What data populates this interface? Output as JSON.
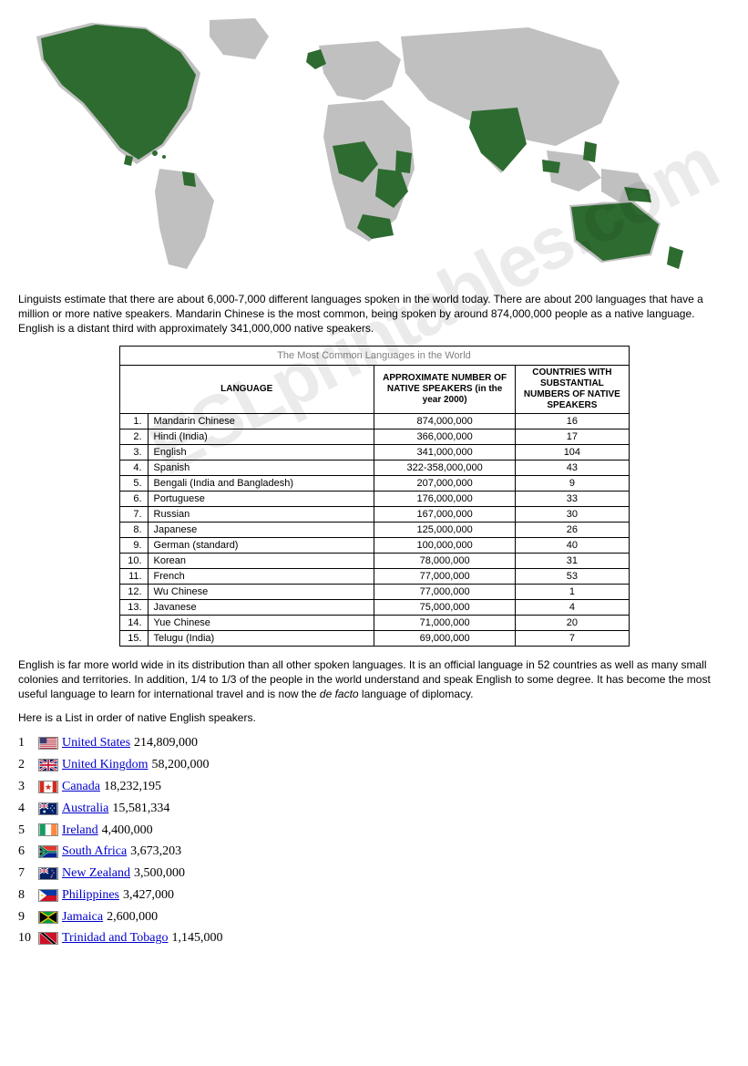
{
  "map": {
    "land_color": "#c0c0c0",
    "highlight_color": "#2e6b30",
    "bg_color": "#ffffff"
  },
  "intro_paragraph": "Linguists estimate that there are about 6,000-7,000 different languages spoken in the world today.  There are about 200 languages that have a million or more native speakers.   Mandarin Chinese is the most common, being spoken by around 874,000,000 people as a native language.  English is a distant third with approximately 341,000,000 native speakers.",
  "table": {
    "caption": "The Most Common Languages in the World",
    "headers": {
      "language": "LANGUAGE",
      "speakers": "APPROXIMATE NUMBER OF NATIVE SPEAKERS (in the year 2000)",
      "countries": "COUNTRIES WITH SUBSTANTIAL NUMBERS OF NATIVE SPEAKERS"
    },
    "rows": [
      {
        "rank": "1.",
        "name": "Mandarin Chinese",
        "speakers": "874,000,000",
        "countries": "16"
      },
      {
        "rank": "2.",
        "name": "Hindi (India)",
        "speakers": "366,000,000",
        "countries": "17"
      },
      {
        "rank": "3.",
        "name": "English",
        "speakers": "341,000,000",
        "countries": "104"
      },
      {
        "rank": "4.",
        "name": "Spanish",
        "speakers": "322-358,000,000",
        "countries": "43"
      },
      {
        "rank": "5.",
        "name": "Bengali (India and Bangladesh)",
        "speakers": "207,000,000",
        "countries": "9"
      },
      {
        "rank": "6.",
        "name": "Portuguese",
        "speakers": "176,000,000",
        "countries": "33"
      },
      {
        "rank": "7.",
        "name": "Russian",
        "speakers": "167,000,000",
        "countries": "30"
      },
      {
        "rank": "8.",
        "name": "Japanese",
        "speakers": "125,000,000",
        "countries": "26"
      },
      {
        "rank": "9.",
        "name": "German (standard)",
        "speakers": "100,000,000",
        "countries": "40"
      },
      {
        "rank": "10.",
        "name": "Korean",
        "speakers": "78,000,000",
        "countries": "31"
      },
      {
        "rank": "11.",
        "name": "French",
        "speakers": "77,000,000",
        "countries": "53"
      },
      {
        "rank": "12.",
        "name": "Wu Chinese",
        "speakers": "77,000,000",
        "countries": "1"
      },
      {
        "rank": "13.",
        "name": "Javanese",
        "speakers": "75,000,000",
        "countries": "4"
      },
      {
        "rank": "14.",
        "name": "Yue Chinese",
        "speakers": "71,000,000",
        "countries": "20"
      },
      {
        "rank": "15.",
        "name": "Telugu (India)",
        "speakers": "69,000,000",
        "countries": "7"
      }
    ]
  },
  "english_paragraph_1": "English is far more world wide in its distribution than all other spoken languages.  It is an official language in 52 countries as well as many small colonies and territories.  In addition, 1/4 to 1/3 of the people in the world understand and speak English to some degree.  It has become the most useful language to learn for international travel and is now the ",
  "english_paragraph_em": "de facto",
  "english_paragraph_2": " language of diplomacy.",
  "list_intro": "Here is a List in order of native English speakers.",
  "countries": [
    {
      "rank": "1",
      "name": "United States",
      "value": "214,809,000",
      "flag": "us"
    },
    {
      "rank": "2",
      "name": "United Kingdom",
      "value": "58,200,000",
      "flag": "uk"
    },
    {
      "rank": "3",
      "name": "Canada",
      "value": "18,232,195",
      "flag": "ca"
    },
    {
      "rank": "4",
      "name": "Australia",
      "value": "15,581,334",
      "flag": "au"
    },
    {
      "rank": "5",
      "name": "Ireland",
      "value": "4,400,000",
      "flag": "ie"
    },
    {
      "rank": "6",
      "name": "South Africa",
      "value": "3,673,203",
      "flag": "za"
    },
    {
      "rank": "7",
      "name": "New Zealand",
      "value": "3,500,000",
      "flag": "nz"
    },
    {
      "rank": "8",
      "name": "Philippines",
      "value": "3,427,000",
      "flag": "ph"
    },
    {
      "rank": "9",
      "name": "Jamaica",
      "value": "2,600,000",
      "flag": "jm"
    },
    {
      "rank": "10",
      "name": "Trinidad and Tobago",
      "value": "1,145,000",
      "flag": "tt"
    }
  ],
  "watermark_text": "ESLprintables.com"
}
